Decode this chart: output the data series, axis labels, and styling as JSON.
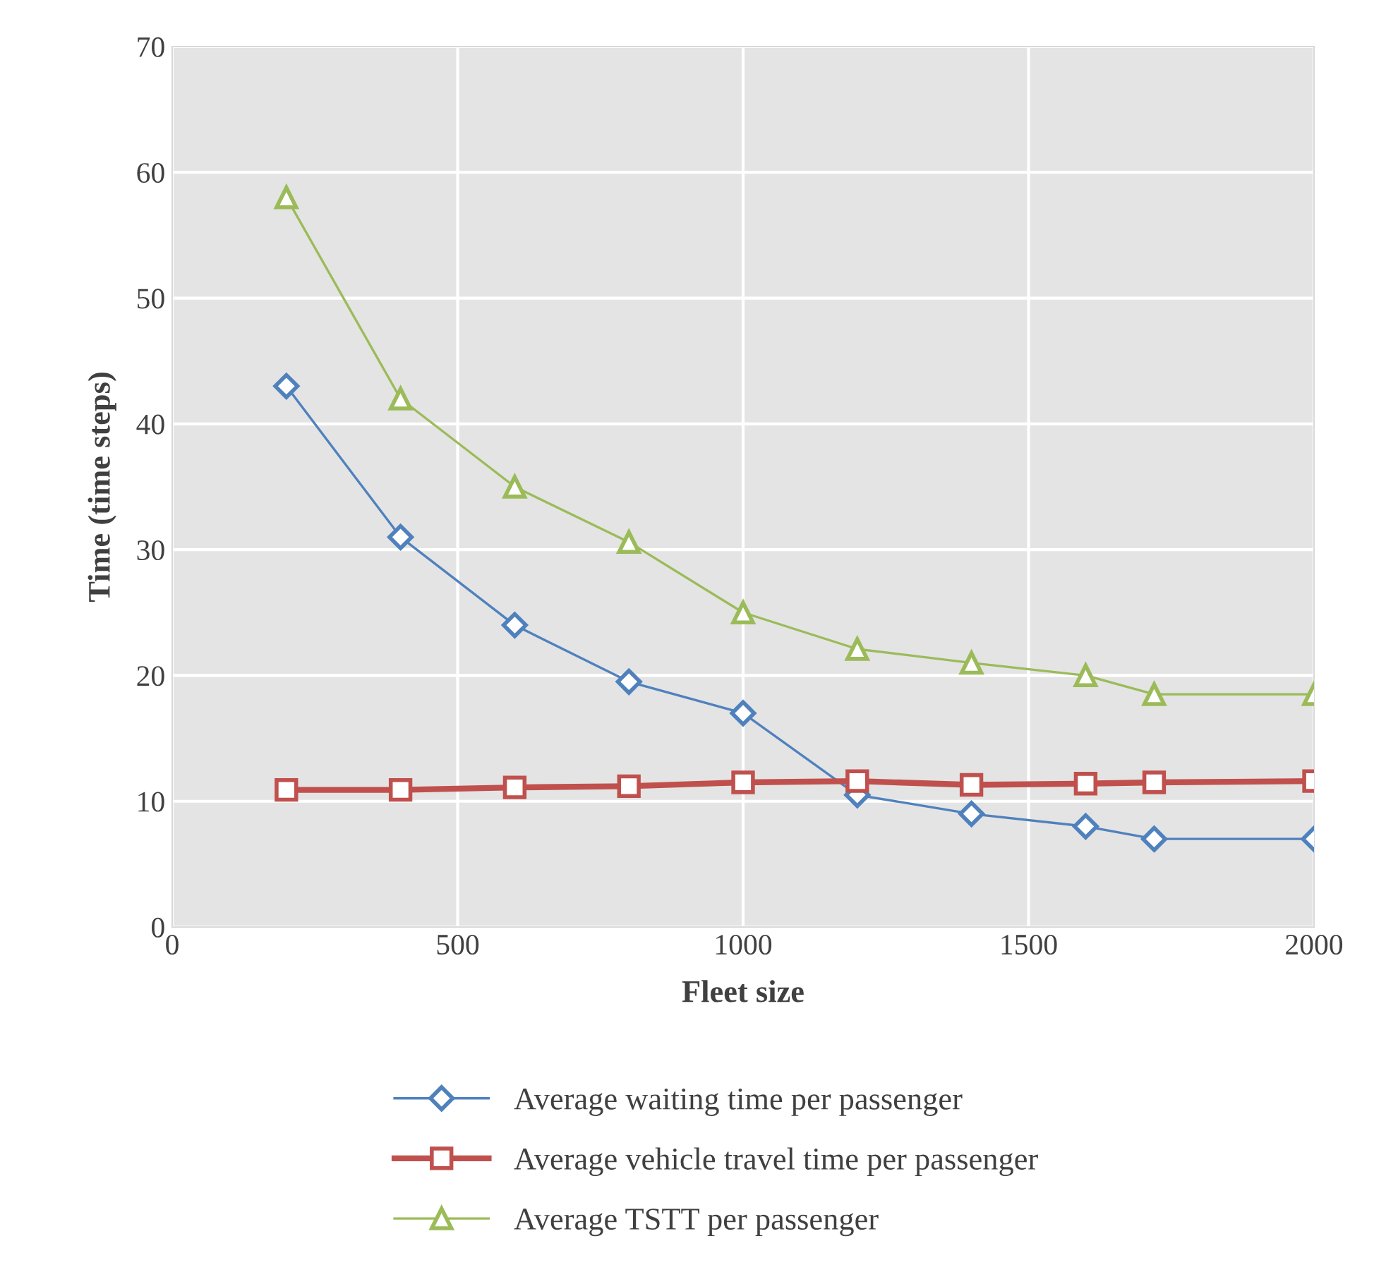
{
  "chart_data": {
    "type": "line",
    "xlabel": "Fleet size",
    "ylabel": "Time (time steps)",
    "x": [
      200,
      400,
      600,
      800,
      1000,
      1200,
      1400,
      1600,
      1720,
      2000
    ],
    "series": [
      {
        "name": "Average waiting time per passenger",
        "color": "#4f81bd",
        "marker": "diamond",
        "values": [
          43,
          31,
          24,
          19.5,
          17,
          10.5,
          9,
          8,
          7,
          7
        ]
      },
      {
        "name": "Average vehicle travel time per passenger",
        "color": "#c0504d",
        "marker": "square",
        "values": [
          10.9,
          10.9,
          11.1,
          11.2,
          11.5,
          11.6,
          11.3,
          11.4,
          11.5,
          11.6
        ]
      },
      {
        "name": "Average TSTT per passenger",
        "color": "#9bbb59",
        "marker": "triangle",
        "values": [
          58,
          42,
          35,
          30.6,
          25,
          22.1,
          21,
          20,
          18.5,
          18.5
        ]
      }
    ],
    "xlim": [
      0,
      2000
    ],
    "xticks": [
      0,
      500,
      1000,
      1500,
      2000
    ],
    "ylim": [
      0,
      70
    ],
    "yticks": [
      0,
      10,
      20,
      30,
      40,
      50,
      60,
      70
    ],
    "grid": true,
    "legend": "bottom",
    "line_style": "solid"
  }
}
